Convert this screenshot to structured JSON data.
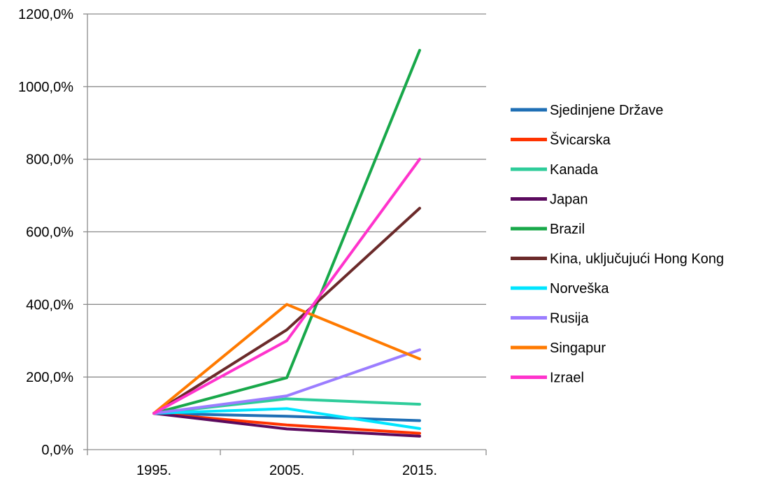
{
  "chart_data": {
    "type": "line",
    "title": "",
    "xlabel": "",
    "ylabel": "",
    "categories": [
      "1995.",
      "2005.",
      "2015."
    ],
    "ylim": [
      0,
      1200
    ],
    "y_ticks": [
      0,
      200,
      400,
      600,
      800,
      1000,
      1200
    ],
    "y_tick_labels": [
      "0,0%",
      "200,0%",
      "400,0%",
      "600,0%",
      "800,0%",
      "1000,0%",
      "1200,0%"
    ],
    "grid": "horizontal",
    "legend_position": "right",
    "series": [
      {
        "name": "Sjedinjene Države",
        "color": "#1f6fb5",
        "values": [
          100,
          92,
          80
        ]
      },
      {
        "name": "Švicarska",
        "color": "#ff3300",
        "values": [
          100,
          68,
          45
        ]
      },
      {
        "name": "Kanada",
        "color": "#2ecc9a",
        "values": [
          100,
          140,
          125
        ]
      },
      {
        "name": "Japan",
        "color": "#5b0a5e",
        "values": [
          100,
          57,
          37
        ]
      },
      {
        "name": "Brazil",
        "color": "#18a84a",
        "values": [
          100,
          198,
          1100
        ]
      },
      {
        "name": "Kina, uključujući Hong Kong",
        "color": "#6b2a2a",
        "values": [
          100,
          330,
          665
        ]
      },
      {
        "name": "Norveška",
        "color": "#00e5ff",
        "values": [
          100,
          113,
          58
        ]
      },
      {
        "name": "Rusija",
        "color": "#9b7dff",
        "values": [
          100,
          148,
          275
        ]
      },
      {
        "name": "Singapur",
        "color": "#ff7a00",
        "values": [
          100,
          400,
          250
        ]
      },
      {
        "name": "Izrael",
        "color": "#ff33cc",
        "values": [
          100,
          300,
          800
        ]
      }
    ]
  }
}
